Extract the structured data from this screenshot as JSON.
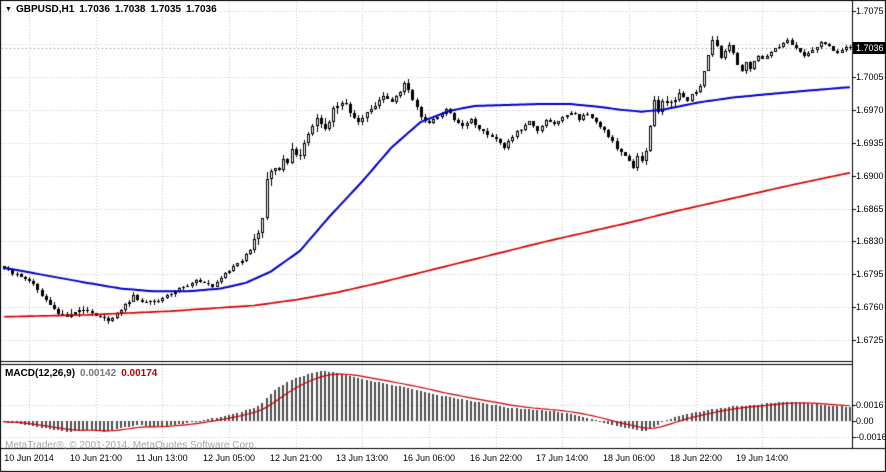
{
  "title": {
    "marker": "▼",
    "symbol_period": "GBPUSD,H1",
    "open": "1.7036",
    "high": "1.7038",
    "low": "1.7035",
    "close": "1.7036"
  },
  "price_axis": {
    "current_label": "1.7036"
  },
  "indicator_label": {
    "name": "MACD(12,26,9)",
    "value": "0.00142",
    "signal": "0.00174"
  },
  "watermark": "MetaTrader®, © 2001-2014, MetaQuotes Software Corp.",
  "colors": {
    "background": "#ffffff",
    "frame": "#000000",
    "grid": "#c9c9c9",
    "bid_line": "#808080",
    "candle_outline": "#000000",
    "bull_body": "#ffffff",
    "bear_body": "#000000",
    "ma_fast": "#0000cc",
    "ma_slow": "#d40000",
    "macd_histogram": "#4f4f4f",
    "macd_signal": "#cc0000",
    "badge_bg": "#000000",
    "badge_text": "#ffffff"
  },
  "chart_data": [
    {
      "type": "candlestick",
      "title": "GBPUSD H1",
      "bars_total": 204,
      "ylim": [
        1.6703,
        1.70845
      ],
      "price_range": [
        1.6737,
        1.7049
      ],
      "last_price": 1.7036,
      "noise_seed": 20140619,
      "y_ticks": [
        1.7075,
        1.704,
        1.7005,
        1.697,
        1.6935,
        1.69,
        1.6865,
        1.683,
        1.6795,
        1.676,
        1.6725
      ],
      "x_gridline_bars": [
        6,
        22,
        38,
        54,
        70,
        86,
        102,
        118,
        134,
        150,
        166,
        182
      ],
      "x_tick_labels": [
        "10 Jun 2014",
        "10 Jun 21:00",
        "11 Jun 13:00",
        "12 Jun 05:00",
        "12 Jun 21:00",
        "13 Jun 13:00",
        "16 Jun 06:00",
        "16 Jun 22:00",
        "17 Jun 14:00",
        "18 Jun 06:00",
        "18 Jun 22:00",
        "19 Jun 14:00"
      ],
      "close_keyframes": [
        [
          0,
          1.6801
        ],
        [
          3,
          1.6795
        ],
        [
          6,
          1.6789
        ],
        [
          9,
          1.6773
        ],
        [
          12,
          1.6758
        ],
        [
          15,
          1.6748
        ],
        [
          18,
          1.6759
        ],
        [
          22,
          1.6752
        ],
        [
          25,
          1.6745
        ],
        [
          28,
          1.6757
        ],
        [
          31,
          1.6772
        ],
        [
          34,
          1.6764
        ],
        [
          38,
          1.6769
        ],
        [
          42,
          1.6779
        ],
        [
          46,
          1.6788
        ],
        [
          50,
          1.6783
        ],
        [
          54,
          1.6799
        ],
        [
          57,
          1.6811
        ],
        [
          59,
          1.6823
        ],
        [
          61,
          1.6838
        ],
        [
          62,
          1.6853
        ],
        [
          63,
          1.6896
        ],
        [
          65,
          1.6909
        ],
        [
          66,
          1.6903
        ],
        [
          67,
          1.6918
        ],
        [
          68,
          1.6912
        ],
        [
          69,
          1.6926
        ],
        [
          71,
          1.6923
        ],
        [
          73,
          1.6945
        ],
        [
          75,
          1.6959
        ],
        [
          77,
          1.6949
        ],
        [
          79,
          1.6971
        ],
        [
          81,
          1.698
        ],
        [
          83,
          1.6967
        ],
        [
          85,
          1.6956
        ],
        [
          87,
          1.6966
        ],
        [
          89,
          1.6975
        ],
        [
          91,
          1.6985
        ],
        [
          93,
          1.6977
        ],
        [
          95,
          1.6989
        ],
        [
          96,
          1.6999
        ],
        [
          98,
          1.6981
        ],
        [
          100,
          1.6963
        ],
        [
          102,
          1.6956
        ],
        [
          104,
          1.6963
        ],
        [
          106,
          1.6969
        ],
        [
          108,
          1.6961
        ],
        [
          110,
          1.6953
        ],
        [
          112,
          1.6959
        ],
        [
          114,
          1.6951
        ],
        [
          116,
          1.6944
        ],
        [
          118,
          1.6938
        ],
        [
          120,
          1.693
        ],
        [
          122,
          1.6942
        ],
        [
          124,
          1.695
        ],
        [
          126,
          1.6957
        ],
        [
          128,
          1.6948
        ],
        [
          130,
          1.696
        ],
        [
          132,
          1.6955
        ],
        [
          134,
          1.6962
        ],
        [
          136,
          1.6968
        ],
        [
          138,
          1.696
        ],
        [
          140,
          1.6966
        ],
        [
          142,
          1.6956
        ],
        [
          144,
          1.6948
        ],
        [
          146,
          1.6936
        ],
        [
          148,
          1.6924
        ],
        [
          150,
          1.6916
        ],
        [
          151,
          1.6908
        ],
        [
          152,
          1.692
        ],
        [
          153,
          1.6914
        ],
        [
          154,
          1.6928
        ],
        [
          155,
          1.695
        ],
        [
          156,
          1.6978
        ],
        [
          157,
          1.697
        ],
        [
          158,
          1.6982
        ],
        [
          160,
          1.6976
        ],
        [
          162,
          1.6986
        ],
        [
          164,
          1.698
        ],
        [
          166,
          1.699
        ],
        [
          167,
          1.6994
        ],
        [
          168,
          1.701
        ],
        [
          169,
          1.7028
        ],
        [
          170,
          1.7043
        ],
        [
          171,
          1.7036
        ],
        [
          172,
          1.7026
        ],
        [
          173,
          1.7032
        ],
        [
          174,
          1.704
        ],
        [
          175,
          1.703
        ],
        [
          176,
          1.7018
        ],
        [
          177,
          1.7012
        ],
        [
          178,
          1.702
        ],
        [
          179,
          1.7014
        ],
        [
          180,
          1.7022
        ],
        [
          181,
          1.7028
        ],
        [
          182,
          1.7024
        ],
        [
          184,
          1.7032
        ],
        [
          186,
          1.7038
        ],
        [
          188,
          1.7044
        ],
        [
          190,
          1.7036
        ],
        [
          192,
          1.7028
        ],
        [
          194,
          1.7034
        ],
        [
          196,
          1.7042
        ],
        [
          198,
          1.7038
        ],
        [
          200,
          1.703
        ],
        [
          202,
          1.7038
        ],
        [
          203,
          1.7036
        ]
      ],
      "bar_range_pips_keyframes": [
        [
          0,
          6
        ],
        [
          15,
          9
        ],
        [
          30,
          6
        ],
        [
          50,
          5
        ],
        [
          58,
          9
        ],
        [
          63,
          15
        ],
        [
          70,
          12
        ],
        [
          80,
          12
        ],
        [
          90,
          8
        ],
        [
          100,
          7
        ],
        [
          120,
          6
        ],
        [
          140,
          5
        ],
        [
          150,
          8
        ],
        [
          156,
          12
        ],
        [
          164,
          6
        ],
        [
          170,
          8
        ],
        [
          178,
          5
        ],
        [
          188,
          6
        ],
        [
          203,
          5
        ]
      ],
      "overlays": [
        {
          "name": "ma-fast-blue",
          "keyframes": [
            [
              0,
              1.6802
            ],
            [
              10,
              1.6794
            ],
            [
              20,
              1.6786
            ],
            [
              28,
              1.678
            ],
            [
              36,
              1.6777
            ],
            [
              44,
              1.6777
            ],
            [
              52,
              1.678
            ],
            [
              58,
              1.6786
            ],
            [
              64,
              1.6798
            ],
            [
              71,
              1.682
            ],
            [
              78,
              1.6856
            ],
            [
              86,
              1.6894
            ],
            [
              93,
              1.693
            ],
            [
              100,
              1.6957
            ],
            [
              107,
              1.6969
            ],
            [
              113,
              1.6974
            ],
            [
              120,
              1.6975
            ],
            [
              128,
              1.6976
            ],
            [
              136,
              1.6976
            ],
            [
              143,
              1.6973
            ],
            [
              148,
              1.697
            ],
            [
              153,
              1.6968
            ],
            [
              158,
              1.697
            ],
            [
              167,
              1.6978
            ],
            [
              175,
              1.6983
            ],
            [
              182,
              1.6986
            ],
            [
              192,
              1.699
            ],
            [
              203,
              1.6994
            ]
          ]
        },
        {
          "name": "ma-slow-red",
          "keyframes": [
            [
              0,
              1.675
            ],
            [
              20,
              1.6752
            ],
            [
              40,
              1.6756
            ],
            [
              60,
              1.6762
            ],
            [
              70,
              1.6768
            ],
            [
              80,
              1.6776
            ],
            [
              90,
              1.6786
            ],
            [
              100,
              1.6797
            ],
            [
              110,
              1.6808
            ],
            [
              120,
              1.6819
            ],
            [
              130,
              1.683
            ],
            [
              140,
              1.684
            ],
            [
              150,
              1.685
            ],
            [
              160,
              1.6861
            ],
            [
              170,
              1.6871
            ],
            [
              180,
              1.6881
            ],
            [
              190,
              1.6891
            ],
            [
              203,
              1.6903
            ]
          ]
        }
      ]
    },
    {
      "type": "bar",
      "title": "MACD(12,26,9)",
      "macd_value": 0.00142,
      "signal_value": 0.00174,
      "signal_ema_period": 9,
      "ylim": [
        -0.0027,
        0.0056
      ],
      "y_ticks": [
        [
          0.0016,
          "0.0016"
        ],
        [
          0,
          "0.00"
        ],
        [
          -0.0016,
          "-0.0016"
        ]
      ],
      "macd_keyframes": [
        [
          0,
          -0.0001
        ],
        [
          4,
          -0.0003
        ],
        [
          8,
          -0.0006
        ],
        [
          12,
          -0.0009
        ],
        [
          16,
          -0.0011
        ],
        [
          20,
          -0.0009
        ],
        [
          24,
          -0.0011
        ],
        [
          28,
          -0.0007
        ],
        [
          32,
          -0.0004
        ],
        [
          36,
          -0.0006
        ],
        [
          40,
          -0.0004
        ],
        [
          44,
          -0.0002
        ],
        [
          48,
          0.0001
        ],
        [
          52,
          0.0004
        ],
        [
          56,
          0.0008
        ],
        [
          60,
          0.0013
        ],
        [
          62,
          0.0018
        ],
        [
          64,
          0.0027
        ],
        [
          66,
          0.0034
        ],
        [
          68,
          0.0039
        ],
        [
          70,
          0.0043
        ],
        [
          73,
          0.0047
        ],
        [
          76,
          0.005
        ],
        [
          79,
          0.0049
        ],
        [
          82,
          0.0046
        ],
        [
          85,
          0.0043
        ],
        [
          88,
          0.004
        ],
        [
          92,
          0.0037
        ],
        [
          96,
          0.0034
        ],
        [
          100,
          0.003
        ],
        [
          104,
          0.0026
        ],
        [
          108,
          0.0023
        ],
        [
          112,
          0.002
        ],
        [
          116,
          0.0017
        ],
        [
          120,
          0.0014
        ],
        [
          124,
          0.0012
        ],
        [
          128,
          0.0011
        ],
        [
          132,
          0.001
        ],
        [
          136,
          0.0007
        ],
        [
          140,
          0.0003
        ],
        [
          142,
          0.0001
        ],
        [
          144,
          -0.0002
        ],
        [
          148,
          -0.0006
        ],
        [
          152,
          -0.0009
        ],
        [
          154,
          -0.001
        ],
        [
          157,
          -0.0004
        ],
        [
          159,
          0.0001
        ],
        [
          162,
          0.0005
        ],
        [
          165,
          0.0008
        ],
        [
          168,
          0.001
        ],
        [
          172,
          0.0013
        ],
        [
          176,
          0.0015
        ],
        [
          180,
          0.0016
        ],
        [
          184,
          0.0018
        ],
        [
          188,
          0.0019
        ],
        [
          192,
          0.0018
        ],
        [
          196,
          0.0016
        ],
        [
          200,
          0.0015
        ],
        [
          203,
          0.00142
        ]
      ]
    }
  ]
}
